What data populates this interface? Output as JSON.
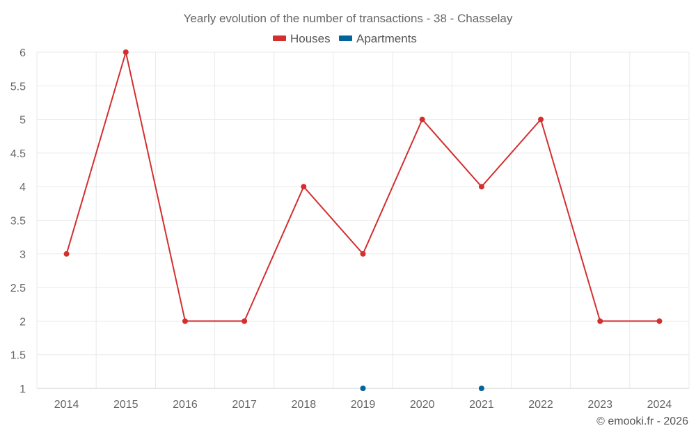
{
  "chart_data": {
    "type": "line",
    "title": "Yearly evolution of the number of transactions - 38 - Chasselay",
    "x": [
      "2014",
      "2015",
      "2016",
      "2017",
      "2018",
      "2019",
      "2020",
      "2021",
      "2022",
      "2023",
      "2024"
    ],
    "ylim": [
      1,
      6
    ],
    "yticks": [
      "1",
      "1.5",
      "2",
      "2.5",
      "3",
      "3.5",
      "4",
      "4.5",
      "5",
      "5.5",
      "6"
    ],
    "grid": true,
    "legend_position": "top-center",
    "series": [
      {
        "name": "Houses",
        "color": "#d32f2f",
        "line": true,
        "values": [
          3,
          6,
          2,
          2,
          4,
          3,
          5,
          4,
          5,
          2,
          2
        ]
      },
      {
        "name": "Apartments",
        "color": "#01649a",
        "line": false,
        "values": [
          null,
          null,
          null,
          null,
          null,
          1,
          null,
          1,
          null,
          null,
          null
        ]
      }
    ]
  },
  "footer": {
    "credit": "© emooki.fr - 2026"
  }
}
